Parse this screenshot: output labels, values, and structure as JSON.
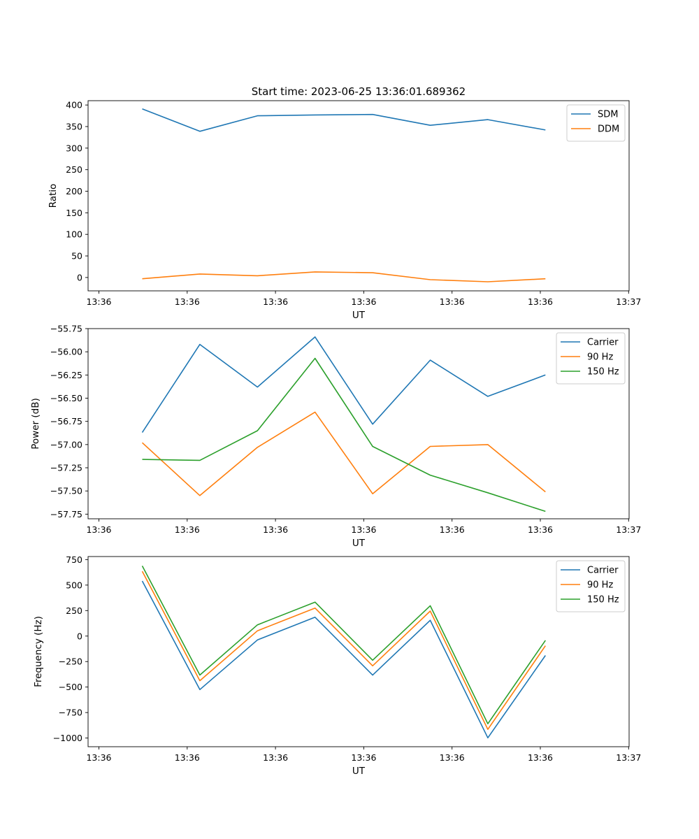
{
  "figure": {
    "title": "Start time: 2023-06-25 13:36:01.689362"
  },
  "colors": {
    "blue": "#1f77b4",
    "orange": "#ff7f0e",
    "green": "#2ca02c"
  },
  "chart_data": [
    {
      "type": "line",
      "title": "",
      "xlabel": "UT",
      "ylabel": "Ratio",
      "xtick_labels": [
        "13:36",
        "13:36",
        "13:36",
        "13:36",
        "13:36",
        "13:36",
        "13:37"
      ],
      "yticks": [
        0,
        50,
        100,
        150,
        200,
        250,
        300,
        350,
        400
      ],
      "ytick_labels": [
        "0",
        "50",
        "100",
        "150",
        "200",
        "250",
        "300",
        "350",
        "400"
      ],
      "ylim": [
        -31,
        410
      ],
      "legend_loc": "upper right",
      "grid": false,
      "series": [
        {
          "name": "SDM",
          "color": "#1f77b4",
          "values": [
            391,
            339,
            375,
            377,
            378,
            353,
            366,
            342
          ]
        },
        {
          "name": "DDM",
          "color": "#ff7f0e",
          "values": [
            -3,
            8,
            4,
            13,
            11,
            -5,
            -10,
            -3
          ]
        }
      ]
    },
    {
      "type": "line",
      "title": "",
      "xlabel": "UT",
      "ylabel": "Power (dB)",
      "xtick_labels": [
        "13:36",
        "13:36",
        "13:36",
        "13:36",
        "13:36",
        "13:36",
        "13:37"
      ],
      "yticks": [
        -57.75,
        -57.5,
        -57.25,
        -57.0,
        -56.75,
        -56.5,
        -56.25,
        -56.0,
        -55.75
      ],
      "ytick_labels": [
        "−57.75",
        "−57.50",
        "−57.25",
        "−57.00",
        "−56.75",
        "−56.50",
        "−56.25",
        "−56.00",
        "−55.75"
      ],
      "ylim": [
        -57.8,
        -55.75
      ],
      "legend_loc": "upper right",
      "grid": false,
      "series": [
        {
          "name": "Carrier",
          "color": "#1f77b4",
          "values": [
            -56.87,
            -55.92,
            -56.38,
            -55.84,
            -56.78,
            -56.09,
            -56.48,
            -56.25
          ]
        },
        {
          "name": "90 Hz",
          "color": "#ff7f0e",
          "values": [
            -56.98,
            -57.55,
            -57.03,
            -56.65,
            -57.53,
            -57.02,
            -57.0,
            -57.51
          ]
        },
        {
          "name": "150 Hz",
          "color": "#2ca02c",
          "values": [
            -57.16,
            -57.17,
            -56.85,
            -56.07,
            -57.02,
            -57.33,
            -57.52,
            -57.72
          ]
        }
      ]
    },
    {
      "type": "line",
      "title": "",
      "xlabel": "UT",
      "ylabel": "Frequency (Hz)",
      "xtick_labels": [
        "13:36",
        "13:36",
        "13:36",
        "13:36",
        "13:36",
        "13:36",
        "13:37"
      ],
      "yticks": [
        -1000,
        -750,
        -500,
        -250,
        0,
        250,
        500,
        750
      ],
      "ytick_labels": [
        "−1000",
        "−750",
        "−500",
        "−250",
        "0",
        "250",
        "500",
        "750"
      ],
      "ylim": [
        -1085,
        780
      ],
      "legend_loc": "upper right",
      "grid": false,
      "series": [
        {
          "name": "Carrier",
          "color": "#1f77b4",
          "values": [
            540,
            -525,
            -38,
            185,
            -383,
            155,
            -998,
            -190
          ]
        },
        {
          "name": "90 Hz",
          "color": "#ff7f0e",
          "values": [
            635,
            -438,
            52,
            275,
            -292,
            245,
            -915,
            -95
          ]
        },
        {
          "name": "150 Hz",
          "color": "#2ca02c",
          "values": [
            688,
            -382,
            110,
            333,
            -237,
            297,
            -860,
            -42
          ]
        }
      ]
    }
  ]
}
